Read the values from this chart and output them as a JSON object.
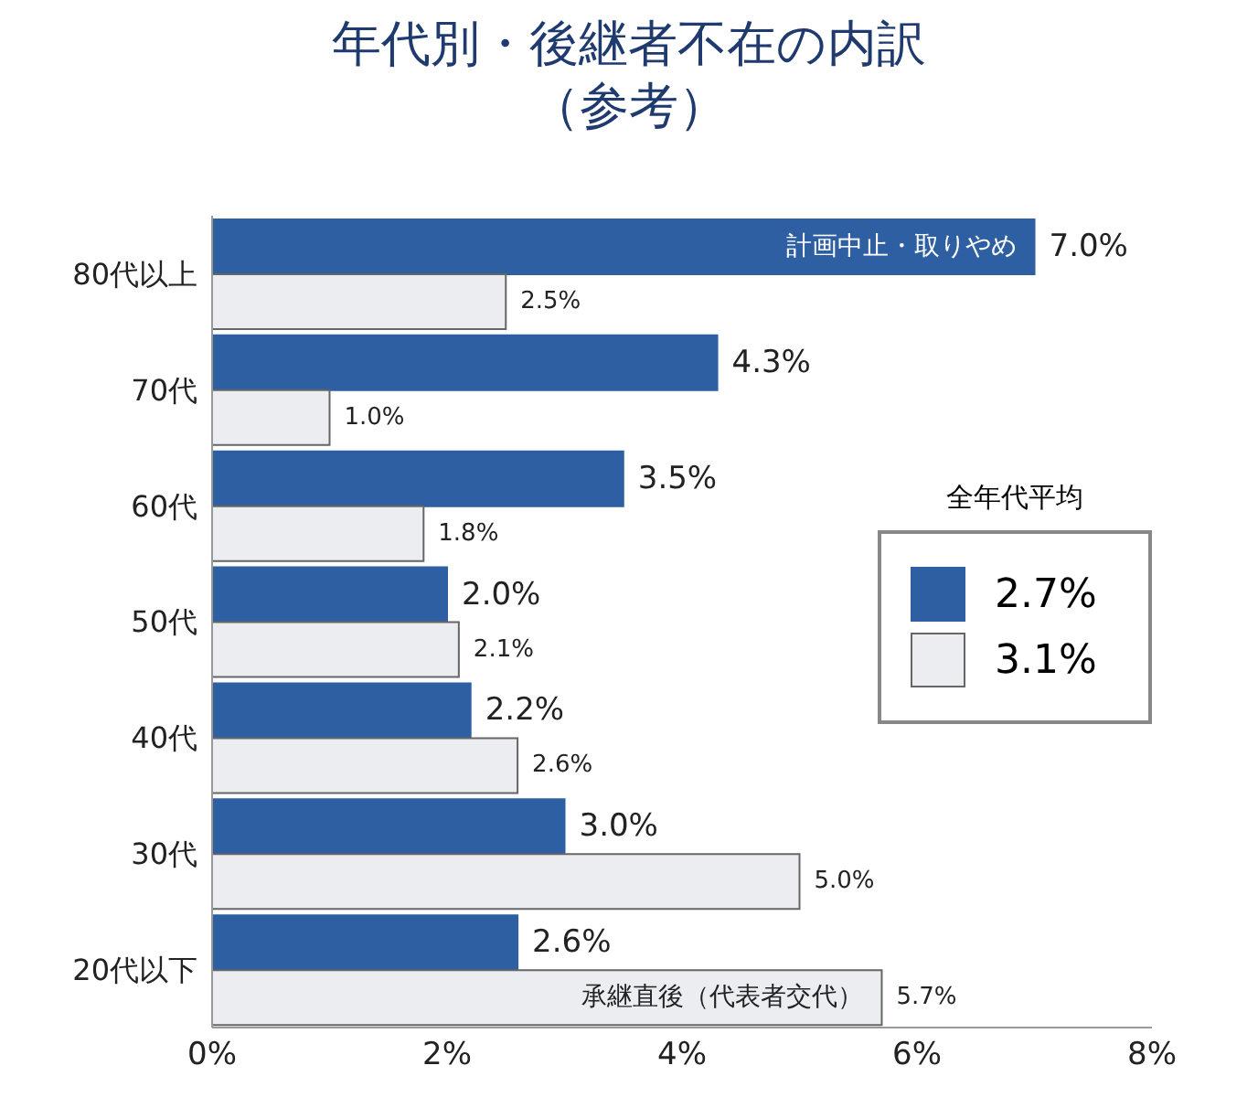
{
  "chart_data": {
    "type": "bar",
    "orientation": "horizontal",
    "title": "年代別・後継者不在の内訳",
    "subtitle": "（参考）",
    "categories": [
      "80代以上",
      "70代",
      "60代",
      "50代",
      "40代",
      "30代",
      "20代以下"
    ],
    "series": [
      {
        "name": "計画中止・取りやめ",
        "color": "#2e5fa3",
        "values": [
          7.0,
          4.3,
          3.5,
          2.0,
          2.2,
          3.0,
          2.6
        ],
        "value_labels": [
          "7.0%",
          "4.3%",
          "3.5%",
          "2.0%",
          "2.2%",
          "3.0%",
          "2.6%"
        ]
      },
      {
        "name": "承継直後（代表者交代）",
        "color": "#ebedf0",
        "values": [
          2.5,
          1.0,
          1.8,
          2.1,
          2.6,
          5.0,
          5.7
        ],
        "value_labels": [
          "2.5%",
          "1.0%",
          "1.8%",
          "2.1%",
          "2.6%",
          "5.0%",
          "5.7%"
        ]
      }
    ],
    "xlim": [
      0,
      8
    ],
    "xticks": [
      {
        "value": 0,
        "label": "0%"
      },
      {
        "value": 2,
        "label": "2%"
      },
      {
        "value": 4,
        "label": "4%"
      },
      {
        "value": 6,
        "label": "6%"
      },
      {
        "value": 8,
        "label": "8%"
      }
    ],
    "legend": "right",
    "legend_title": "全年代平均",
    "annotations": [
      "2.7%",
      "3.1%"
    ]
  }
}
